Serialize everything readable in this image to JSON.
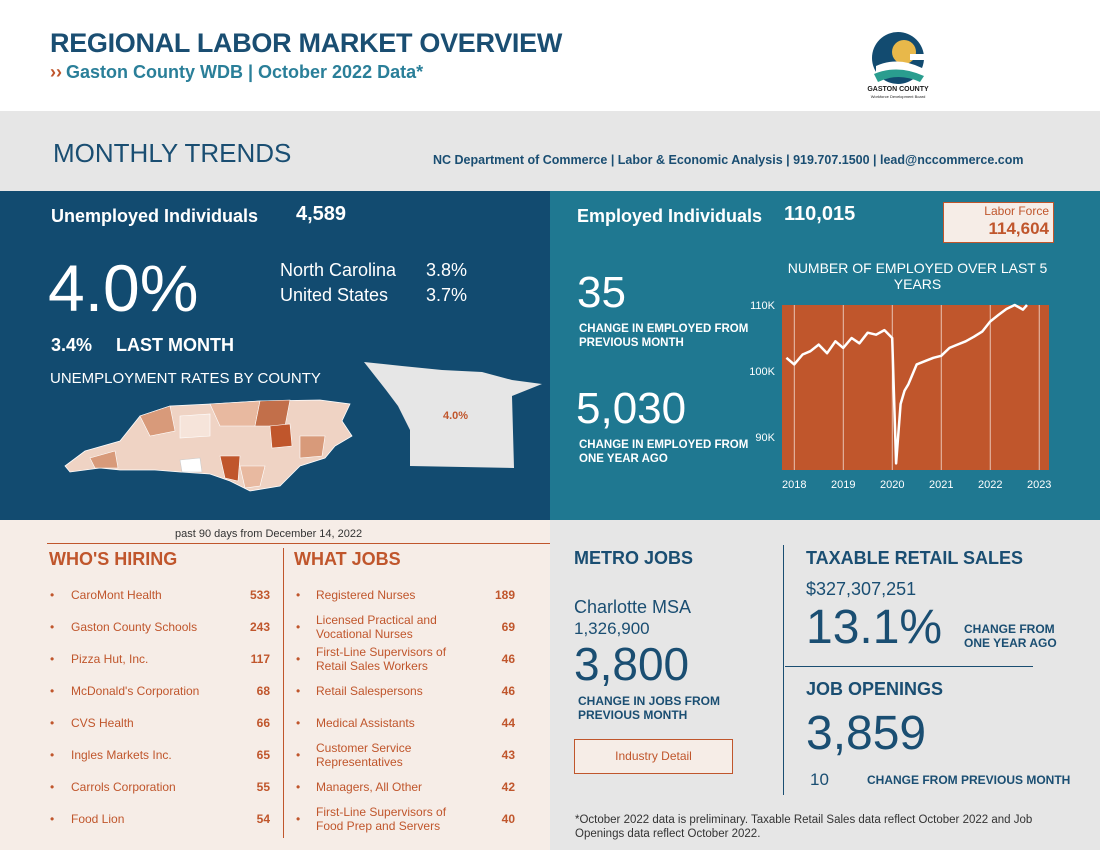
{
  "header": {
    "title": "REGIONAL LABOR MARKET OVERVIEW",
    "subtitle_arrow": "››",
    "subtitle": "Gaston County WDB | October 2022 Data*",
    "logo_text": "GASTON COUNTY",
    "logo_sub": "Workforce Development Board"
  },
  "trends": {
    "title": "MONTHLY TRENDS",
    "contact": "NC Department of Commerce | Labor & Economic Analysis | 919.707.1500 | lead@nccommerce.com"
  },
  "unemployment": {
    "label": "Unemployed Individuals",
    "value": "4,589",
    "rate": "4.0%",
    "nc_label": "North Carolina",
    "nc_value": "3.8%",
    "us_label": "United States",
    "us_value": "3.7%",
    "last_month_value": "3.4%",
    "last_month_label": "LAST MONTH",
    "map_title": "UNEMPLOYMENT RATES BY COUNTY",
    "county_rate": "4.0%"
  },
  "employment": {
    "label": "Employed Individuals",
    "value": "110,015",
    "labor_force_label": "Labor Force",
    "labor_force_value": "114,604",
    "month_change": "35",
    "month_change_label": "CHANGE IN EMPLOYED FROM PREVIOUS MONTH",
    "year_change": "5,030",
    "year_change_label": "CHANGE IN EMPLOYED FROM ONE YEAR AGO"
  },
  "chart_data": {
    "type": "line",
    "title": "NUMBER OF EMPLOYED OVER LAST 5 YEARS",
    "yticks": [
      "110K",
      "100K",
      "90K"
    ],
    "xticks": [
      "2018",
      "2019",
      "2020",
      "2021",
      "2022",
      "2023"
    ],
    "ylim": [
      85000,
      110000
    ],
    "x": [
      2017.84,
      2018.0,
      2018.17,
      2018.33,
      2018.5,
      2018.67,
      2018.84,
      2019.0,
      2019.17,
      2019.33,
      2019.5,
      2019.67,
      2019.84,
      2020.0,
      2020.08,
      2020.17,
      2020.25,
      2020.33,
      2020.5,
      2020.67,
      2020.84,
      2021.0,
      2021.17,
      2021.33,
      2021.5,
      2021.67,
      2021.84,
      2022.0,
      2022.17,
      2022.33,
      2022.5,
      2022.67,
      2022.75
    ],
    "values": [
      102000,
      101000,
      102500,
      103000,
      104000,
      102700,
      104500,
      103500,
      105000,
      104200,
      105800,
      105500,
      106200,
      105000,
      86000,
      95000,
      97000,
      98000,
      101000,
      101500,
      102000,
      102300,
      103500,
      104000,
      104500,
      105200,
      106000,
      107500,
      108500,
      109400,
      110000,
      109300,
      110000
    ],
    "line_color": "#ffffff",
    "bg_color": "#c0562c"
  },
  "hiring": {
    "days_note": "past 90 days from December 14, 2022",
    "who_title": "WHO'S HIRING",
    "what_title": "WHAT JOBS",
    "employers": [
      {
        "name": "CaroMont Health",
        "count": "533"
      },
      {
        "name": "Gaston County Schools",
        "count": "243"
      },
      {
        "name": "Pizza Hut, Inc.",
        "count": "117"
      },
      {
        "name": "McDonald's Corporation",
        "count": "68"
      },
      {
        "name": "CVS Health",
        "count": "66"
      },
      {
        "name": "Ingles Markets Inc.",
        "count": "65"
      },
      {
        "name": "Carrols Corporation",
        "count": "55"
      },
      {
        "name": "Food Lion",
        "count": "54"
      }
    ],
    "jobs": [
      {
        "name": "Registered Nurses",
        "count": "189"
      },
      {
        "name": "Licensed Practical and Vocational Nurses",
        "count": "69"
      },
      {
        "name": "First-Line Supervisors of Retail Sales Workers",
        "count": "46"
      },
      {
        "name": "Retail Salespersons",
        "count": "46"
      },
      {
        "name": "Medical Assistants",
        "count": "44"
      },
      {
        "name": "Customer Service Representatives",
        "count": "43"
      },
      {
        "name": "Managers, All Other",
        "count": "42"
      },
      {
        "name": "First-Line Supervisors of Food Prep and Servers",
        "count": "40"
      }
    ]
  },
  "metro": {
    "title": "METRO JOBS",
    "msa": "Charlotte MSA",
    "msa_value": "1,326,900",
    "change": "3,800",
    "change_label": "CHANGE IN JOBS FROM PREVIOUS MONTH",
    "button": "Industry Detail"
  },
  "retail": {
    "title": "TAXABLE RETAIL SALES",
    "value": "$327,307,251",
    "pct": "13.1%",
    "pct_label": "CHANGE FROM ONE YEAR AGO"
  },
  "openings": {
    "title": "JOB OPENINGS",
    "value": "3,859",
    "change": "10",
    "change_label": "CHANGE FROM PREVIOUS MONTH"
  },
  "footnote": "*October 2022 data is preliminary. Taxable Retail Sales data reflect October 2022 and Job Openings data reflect October 2022."
}
